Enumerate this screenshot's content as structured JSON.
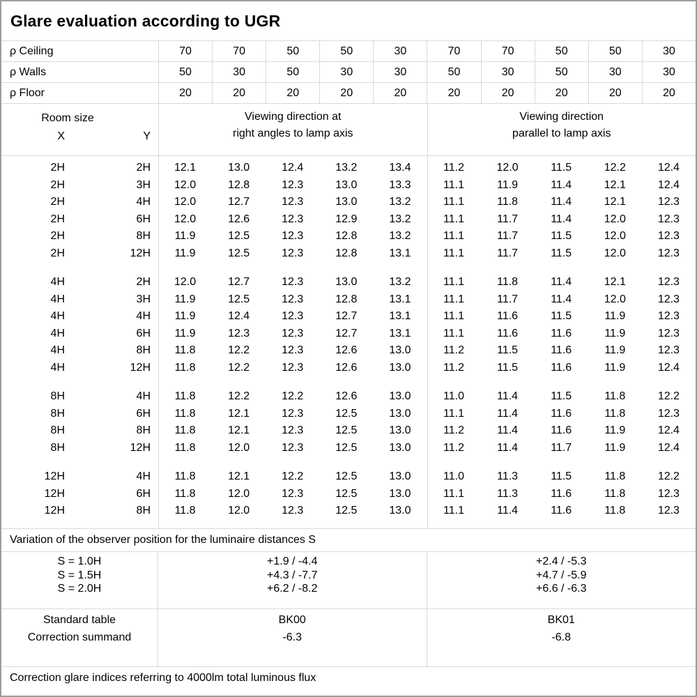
{
  "title": "Glare evaluation according to UGR",
  "colors": {
    "outer_border": "#9d9d9d",
    "grid_line": "#d9d9d9",
    "text": "#000000",
    "background": "#ffffff"
  },
  "reflectance_rows": [
    {
      "label": "ρ Ceiling",
      "values": [
        "70",
        "70",
        "50",
        "50",
        "30",
        "70",
        "70",
        "50",
        "50",
        "30"
      ]
    },
    {
      "label": "ρ Walls",
      "values": [
        "50",
        "30",
        "50",
        "30",
        "30",
        "50",
        "30",
        "50",
        "30",
        "30"
      ]
    },
    {
      "label": "ρ Floor",
      "values": [
        "20",
        "20",
        "20",
        "20",
        "20",
        "20",
        "20",
        "20",
        "20",
        "20"
      ]
    }
  ],
  "header": {
    "room_size_label": "Room size",
    "x_label": "X",
    "y_label": "Y",
    "right_angles_header": [
      "Viewing direction at",
      "right angles to lamp axis"
    ],
    "parallel_header": [
      "Viewing direction",
      "parallel to lamp axis"
    ]
  },
  "ugr_blocks": [
    {
      "rows": [
        {
          "x": "2H",
          "y": "2H",
          "values": [
            "12.1",
            "13.0",
            "12.4",
            "13.2",
            "13.4",
            "11.2",
            "12.0",
            "11.5",
            "12.2",
            "12.4"
          ]
        },
        {
          "x": "2H",
          "y": "3H",
          "values": [
            "12.0",
            "12.8",
            "12.3",
            "13.0",
            "13.3",
            "11.1",
            "11.9",
            "11.4",
            "12.1",
            "12.4"
          ]
        },
        {
          "x": "2H",
          "y": "4H",
          "values": [
            "12.0",
            "12.7",
            "12.3",
            "13.0",
            "13.2",
            "11.1",
            "11.8",
            "11.4",
            "12.1",
            "12.3"
          ]
        },
        {
          "x": "2H",
          "y": "6H",
          "values": [
            "12.0",
            "12.6",
            "12.3",
            "12.9",
            "13.2",
            "11.1",
            "11.7",
            "11.4",
            "12.0",
            "12.3"
          ]
        },
        {
          "x": "2H",
          "y": "8H",
          "values": [
            "11.9",
            "12.5",
            "12.3",
            "12.8",
            "13.2",
            "11.1",
            "11.7",
            "11.5",
            "12.0",
            "12.3"
          ]
        },
        {
          "x": "2H",
          "y": "12H",
          "values": [
            "11.9",
            "12.5",
            "12.3",
            "12.8",
            "13.1",
            "11.1",
            "11.7",
            "11.5",
            "12.0",
            "12.3"
          ]
        }
      ]
    },
    {
      "rows": [
        {
          "x": "4H",
          "y": "2H",
          "values": [
            "12.0",
            "12.7",
            "12.3",
            "13.0",
            "13.2",
            "11.1",
            "11.8",
            "11.4",
            "12.1",
            "12.3"
          ]
        },
        {
          "x": "4H",
          "y": "3H",
          "values": [
            "11.9",
            "12.5",
            "12.3",
            "12.8",
            "13.1",
            "11.1",
            "11.7",
            "11.4",
            "12.0",
            "12.3"
          ]
        },
        {
          "x": "4H",
          "y": "4H",
          "values": [
            "11.9",
            "12.4",
            "12.3",
            "12.7",
            "13.1",
            "11.1",
            "11.6",
            "11.5",
            "11.9",
            "12.3"
          ]
        },
        {
          "x": "4H",
          "y": "6H",
          "values": [
            "11.9",
            "12.3",
            "12.3",
            "12.7",
            "13.1",
            "11.1",
            "11.6",
            "11.6",
            "11.9",
            "12.3"
          ]
        },
        {
          "x": "4H",
          "y": "8H",
          "values": [
            "11.8",
            "12.2",
            "12.3",
            "12.6",
            "13.0",
            "11.2",
            "11.5",
            "11.6",
            "11.9",
            "12.3"
          ]
        },
        {
          "x": "4H",
          "y": "12H",
          "values": [
            "11.8",
            "12.2",
            "12.3",
            "12.6",
            "13.0",
            "11.2",
            "11.5",
            "11.6",
            "11.9",
            "12.4"
          ]
        }
      ]
    },
    {
      "rows": [
        {
          "x": "8H",
          "y": "4H",
          "values": [
            "11.8",
            "12.2",
            "12.2",
            "12.6",
            "13.0",
            "11.0",
            "11.4",
            "11.5",
            "11.8",
            "12.2"
          ]
        },
        {
          "x": "8H",
          "y": "6H",
          "values": [
            "11.8",
            "12.1",
            "12.3",
            "12.5",
            "13.0",
            "11.1",
            "11.4",
            "11.6",
            "11.8",
            "12.3"
          ]
        },
        {
          "x": "8H",
          "y": "8H",
          "values": [
            "11.8",
            "12.1",
            "12.3",
            "12.5",
            "13.0",
            "11.2",
            "11.4",
            "11.6",
            "11.9",
            "12.4"
          ]
        },
        {
          "x": "8H",
          "y": "12H",
          "values": [
            "11.8",
            "12.0",
            "12.3",
            "12.5",
            "13.0",
            "11.2",
            "11.4",
            "11.7",
            "11.9",
            "12.4"
          ]
        }
      ]
    },
    {
      "rows": [
        {
          "x": "12H",
          "y": "4H",
          "values": [
            "11.8",
            "12.1",
            "12.2",
            "12.5",
            "13.0",
            "11.0",
            "11.3",
            "11.5",
            "11.8",
            "12.2"
          ]
        },
        {
          "x": "12H",
          "y": "6H",
          "values": [
            "11.8",
            "12.0",
            "12.3",
            "12.5",
            "13.0",
            "11.1",
            "11.3",
            "11.6",
            "11.8",
            "12.3"
          ]
        },
        {
          "x": "12H",
          "y": "8H",
          "values": [
            "11.8",
            "12.0",
            "12.3",
            "12.5",
            "13.0",
            "11.1",
            "11.4",
            "11.6",
            "11.8",
            "12.3"
          ]
        }
      ]
    }
  ],
  "variation_note": "Variation of the observer position for the luminaire distances S",
  "s_variation": {
    "rows": [
      {
        "label": "S = 1.0H",
        "right_angles": "+1.9 / -4.4",
        "parallel": "+2.4 / -5.3"
      },
      {
        "label": "S = 1.5H",
        "right_angles": "+4.3 / -7.7",
        "parallel": "+4.7 / -5.9"
      },
      {
        "label": "S = 2.0H",
        "right_angles": "+6.2 / -8.2",
        "parallel": "+6.6 / -6.3"
      }
    ]
  },
  "standard_table": {
    "rows": [
      {
        "label": "Standard table",
        "right_angles": "BK00",
        "parallel": "BK01"
      },
      {
        "label": "Correction summand",
        "right_angles": "-6.3",
        "parallel": "-6.8"
      }
    ]
  },
  "footer_note": "Correction glare indices referring to 4000lm total luminous flux"
}
